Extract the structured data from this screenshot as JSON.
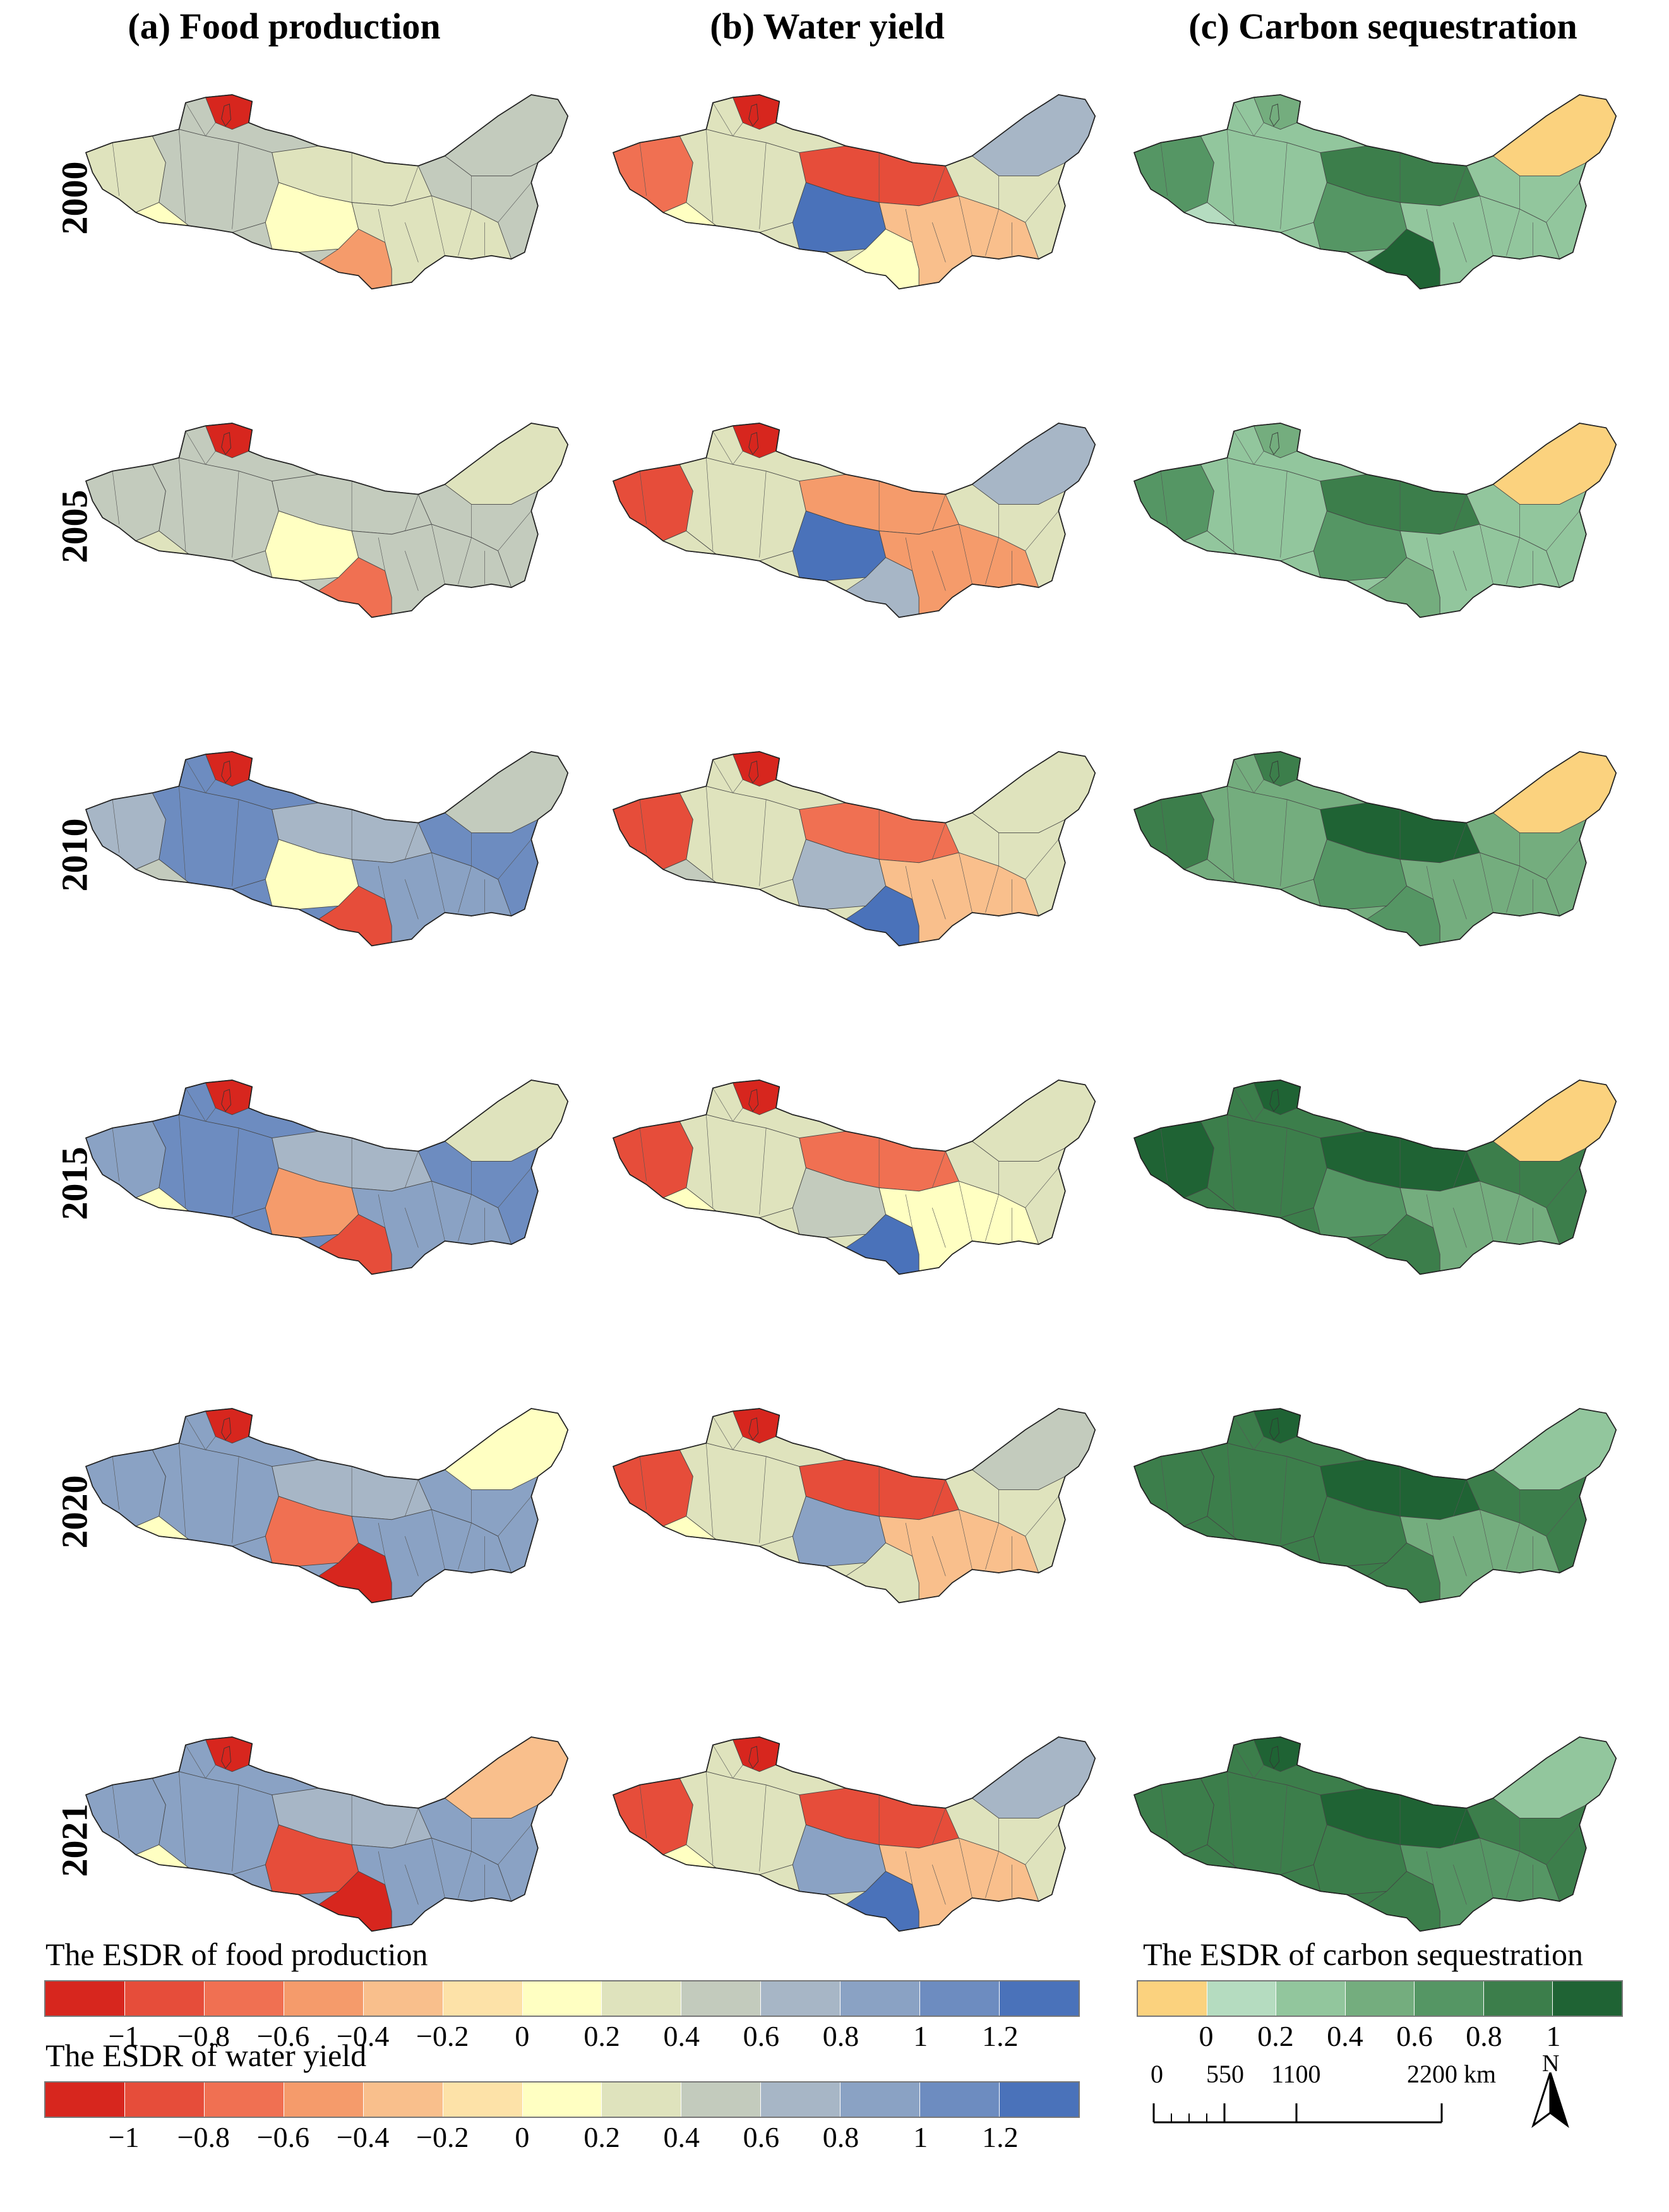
{
  "titles": {
    "food": "(a) Food production",
    "water": "(b) Water yield",
    "carbon": "(c) Carbon sequestration"
  },
  "years": [
    "2000",
    "2005",
    "2010",
    "2015",
    "2020",
    "2021"
  ],
  "legends": {
    "food": {
      "title": "The ESDR of food production",
      "colors": [
        "#d7261e",
        "#e64d3a",
        "#f07052",
        "#f59b6b",
        "#f9bf8c",
        "#fde2a8",
        "#ffffc2",
        "#dfe3bd",
        "#c3cbbd",
        "#a7b6c6",
        "#8aa2c4",
        "#6d8cc0",
        "#4a72ba"
      ],
      "ticks": [
        "−1",
        "−0.8",
        "−0.6",
        "−0.4",
        "−0.2",
        "0",
        "0.2",
        "0.4",
        "0.6",
        "0.8",
        "1",
        "1.2"
      ]
    },
    "water": {
      "title": "The ESDR of water yield",
      "colors": [
        "#d7261e",
        "#e64d3a",
        "#f07052",
        "#f59b6b",
        "#f9bf8c",
        "#fde2a8",
        "#ffffc2",
        "#dfe3bd",
        "#c3cbbd",
        "#a7b6c6",
        "#8aa2c4",
        "#6d8cc0",
        "#4a72ba"
      ],
      "ticks": [
        "−1",
        "−0.8",
        "−0.6",
        "−0.4",
        "−0.2",
        "0",
        "0.2",
        "0.4",
        "0.6",
        "0.8",
        "1",
        "1.2"
      ]
    },
    "carbon": {
      "title": "The ESDR of carbon sequestration",
      "colors": [
        "#fbd27e",
        "#b5dcc0",
        "#92c69d",
        "#74ad7e",
        "#559664",
        "#3c7e4b",
        "#1f6334"
      ],
      "ticks": [
        "0",
        "0.2",
        "0.4",
        "0.6",
        "0.8",
        "1"
      ]
    }
  },
  "scale_bar": {
    "labels": [
      "0",
      "550",
      "1100",
      "2200 km"
    ]
  },
  "north_arrow": {
    "label": "N"
  },
  "maps": {
    "food": [
      [
        "#dfe3bd",
        "#ffffc2",
        "#c3cbbd",
        "#dfe3bd",
        "#ffffc2",
        "#f59b6b",
        "#dfe3bd",
        "#c3cbbd",
        "#d7261e"
      ],
      [
        "#c3cbbd",
        "#dfe3bd",
        "#c3cbbd",
        "#c3cbbd",
        "#ffffc2",
        "#f07052",
        "#c3cbbd",
        "#dfe3bd",
        "#d7261e"
      ],
      [
        "#a7b6c6",
        "#c3cbbd",
        "#6d8cc0",
        "#a7b6c6",
        "#ffffc2",
        "#e64d3a",
        "#8aa2c4",
        "#c3cbbd",
        "#d7261e"
      ],
      [
        "#8aa2c4",
        "#ffffc2",
        "#6d8cc0",
        "#a7b6c6",
        "#f59b6b",
        "#e64d3a",
        "#8aa2c4",
        "#dfe3bd",
        "#d7261e"
      ],
      [
        "#8aa2c4",
        "#ffffc2",
        "#8aa2c4",
        "#a7b6c6",
        "#f07052",
        "#d7261e",
        "#8aa2c4",
        "#ffffc2",
        "#d7261e"
      ],
      [
        "#8aa2c4",
        "#ffffc2",
        "#8aa2c4",
        "#a7b6c6",
        "#e64d3a",
        "#d7261e",
        "#8aa2c4",
        "#f9bf8c",
        "#d7261e"
      ]
    ],
    "water": [
      [
        "#f07052",
        "#ffffc2",
        "#dfe3bd",
        "#e64d3a",
        "#4a72ba",
        "#ffffc2",
        "#f9bf8c",
        "#a7b6c6",
        "#d7261e"
      ],
      [
        "#e64d3a",
        "#dfe3bd",
        "#dfe3bd",
        "#f59b6b",
        "#4a72ba",
        "#a7b6c6",
        "#f59b6b",
        "#a7b6c6",
        "#d7261e"
      ],
      [
        "#e64d3a",
        "#c3cbbd",
        "#dfe3bd",
        "#f07052",
        "#a7b6c6",
        "#4a72ba",
        "#f9bf8c",
        "#dfe3bd",
        "#d7261e"
      ],
      [
        "#e64d3a",
        "#ffffc2",
        "#dfe3bd",
        "#f07052",
        "#c3cbbd",
        "#4a72ba",
        "#ffffc2",
        "#dfe3bd",
        "#d7261e"
      ],
      [
        "#e64d3a",
        "#ffffc2",
        "#dfe3bd",
        "#e64d3a",
        "#8aa2c4",
        "#dfe3bd",
        "#f9bf8c",
        "#c3cbbd",
        "#d7261e"
      ],
      [
        "#e64d3a",
        "#ffffc2",
        "#dfe3bd",
        "#e64d3a",
        "#8aa2c4",
        "#4a72ba",
        "#f9bf8c",
        "#a7b6c6",
        "#d7261e"
      ]
    ],
    "carbon": [
      [
        "#559664",
        "#b5dcc0",
        "#92c69d",
        "#3c7e4b",
        "#559664",
        "#1f6334",
        "#92c69d",
        "#fbd27e",
        "#74ad7e"
      ],
      [
        "#559664",
        "#92c69d",
        "#92c69d",
        "#3c7e4b",
        "#559664",
        "#74ad7e",
        "#92c69d",
        "#fbd27e",
        "#74ad7e"
      ],
      [
        "#3c7e4b",
        "#74ad7e",
        "#74ad7e",
        "#1f6334",
        "#559664",
        "#559664",
        "#74ad7e",
        "#fbd27e",
        "#3c7e4b"
      ],
      [
        "#1f6334",
        "#3c7e4b",
        "#3c7e4b",
        "#1f6334",
        "#559664",
        "#3c7e4b",
        "#74ad7e",
        "#fbd27e",
        "#1f6334"
      ],
      [
        "#3c7e4b",
        "#3c7e4b",
        "#3c7e4b",
        "#1f6334",
        "#3c7e4b",
        "#3c7e4b",
        "#74ad7e",
        "#92c69d",
        "#1f6334"
      ],
      [
        "#3c7e4b",
        "#3c7e4b",
        "#3c7e4b",
        "#1f6334",
        "#3c7e4b",
        "#3c7e4b",
        "#559664",
        "#92c69d",
        "#1f6334"
      ]
    ]
  }
}
